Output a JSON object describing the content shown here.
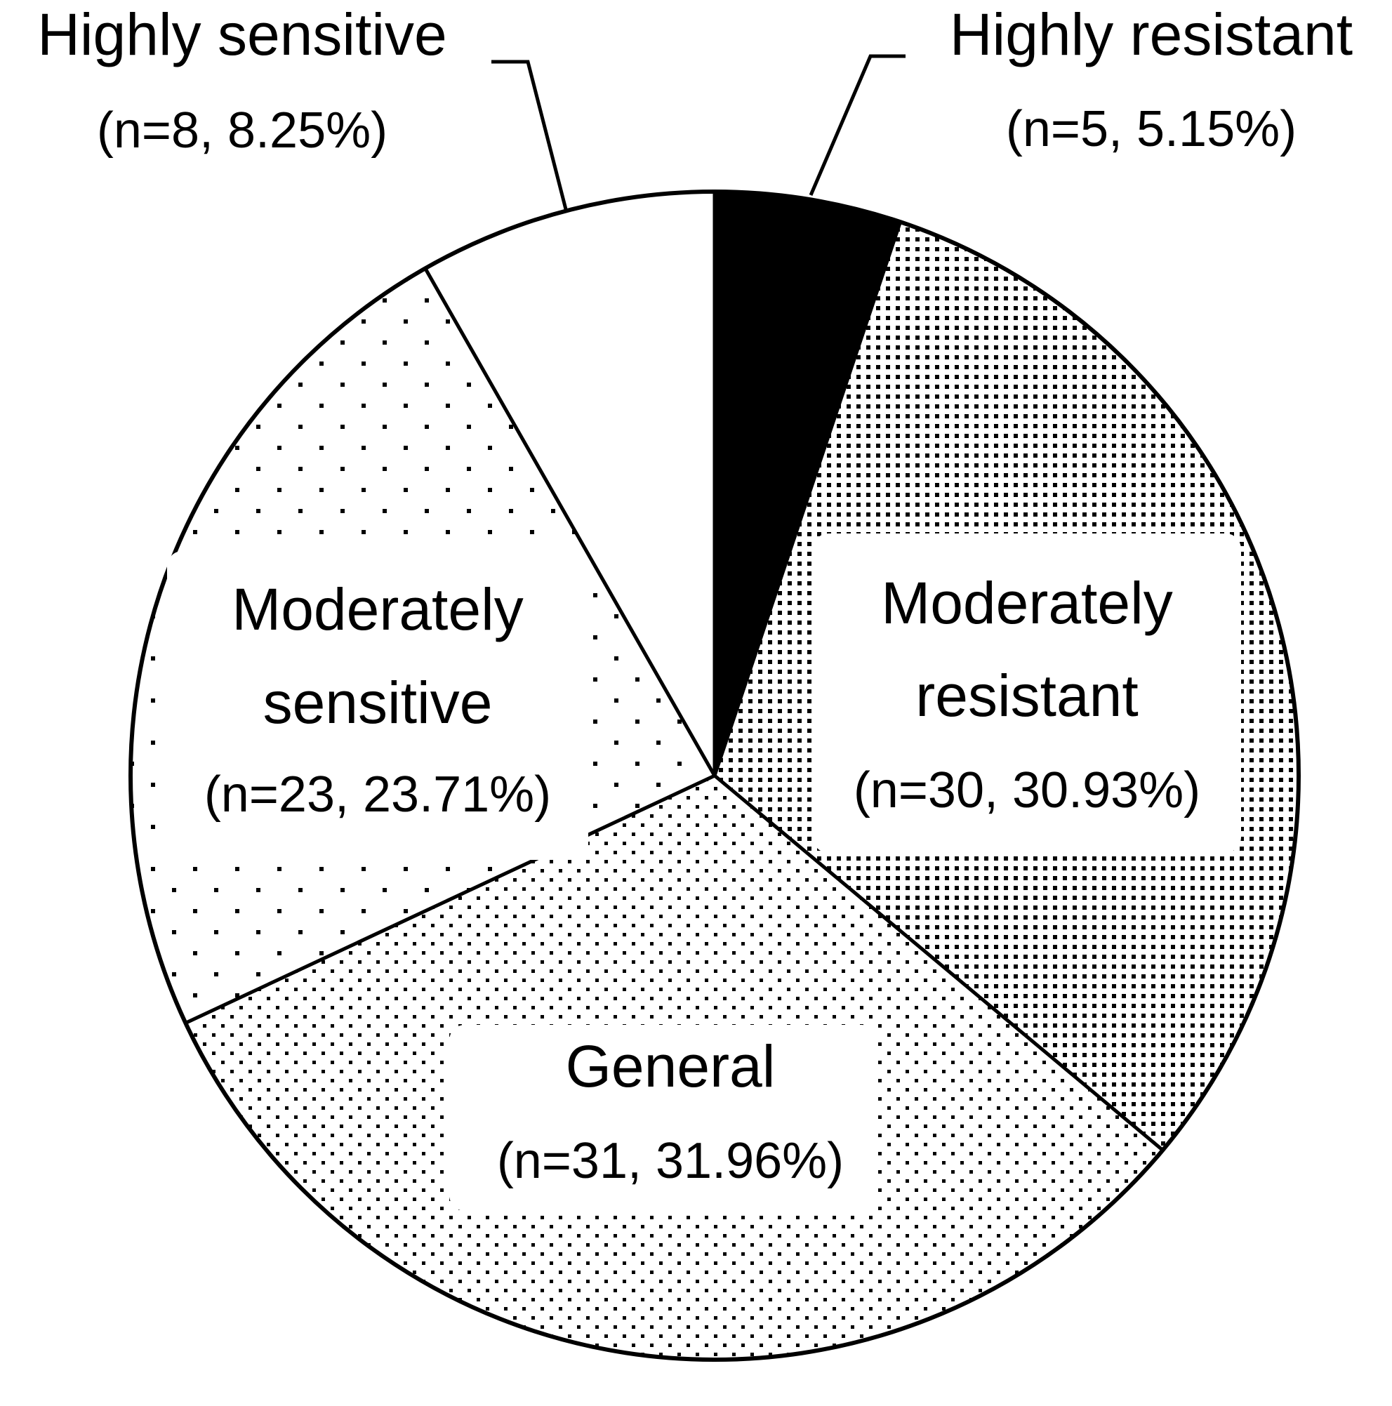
{
  "chart_data": {
    "type": "pie",
    "title": "",
    "start_angle_deg": 0,
    "direction": "clockwise",
    "colors": {
      "edge": "#000000",
      "background": "#ffffff"
    },
    "slices": [
      {
        "label": "Highly resistant",
        "n": 5,
        "percent": 5.15,
        "detail": "(n=5, 5.15%)",
        "fill": "solid-black"
      },
      {
        "label": "Moderately resistant",
        "label_lines": [
          "Moderately",
          "resistant"
        ],
        "n": 30,
        "percent": 30.93,
        "detail": "(n=30, 30.93%)",
        "fill": "dense-dots"
      },
      {
        "label": "General",
        "label_lines": [
          "General"
        ],
        "n": 31,
        "percent": 31.96,
        "detail": "(n=31, 31.96%)",
        "fill": "medium-dots"
      },
      {
        "label": "Moderately sensitive",
        "label_lines": [
          "Moderately",
          "sensitive"
        ],
        "n": 23,
        "percent": 23.71,
        "detail": "(n=23, 23.71%)",
        "fill": "sparse-dots"
      },
      {
        "label": "Highly sensitive",
        "n": 8,
        "percent": 8.25,
        "detail": "(n=8, 8.25%)",
        "fill": "white"
      }
    ]
  }
}
